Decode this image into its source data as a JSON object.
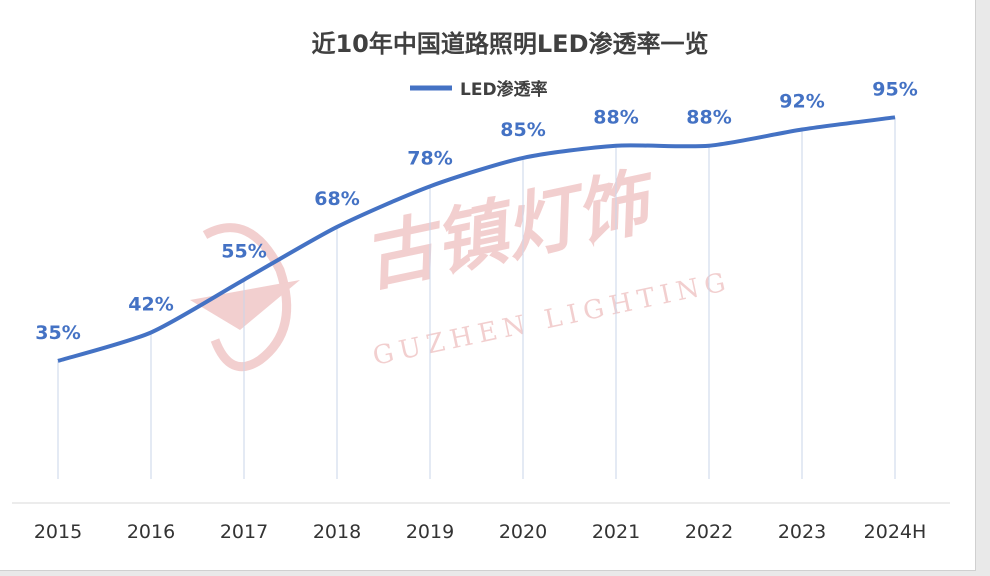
{
  "chart_data": {
    "type": "line",
    "title": "近10年中国道路照明LED渗透率一览",
    "categories": [
      "2015",
      "2016",
      "2017",
      "2018",
      "2019",
      "2020",
      "2021",
      "2022",
      "2023",
      "2024H"
    ],
    "series": [
      {
        "name": "LED渗透率",
        "values": [
          35,
          42,
          55,
          68,
          78,
          85,
          88,
          88,
          92,
          95
        ],
        "labels": [
          "35%",
          "42%",
          "55%",
          "68%",
          "78%",
          "85%",
          "88%",
          "88%",
          "92%",
          "95%"
        ]
      }
    ],
    "ylim": [
      0,
      100
    ],
    "grid": false,
    "drop_lines": true,
    "legend_position": "top-center",
    "colors": {
      "series": "#4472c4",
      "drop_line": "#c9d4ea",
      "axis": "#d9d9d9"
    }
  },
  "watermark": {
    "text_cn": "古镇灯饰",
    "text_en": "GUZHEN LIGHTING",
    "color": "#e8a8a8"
  }
}
